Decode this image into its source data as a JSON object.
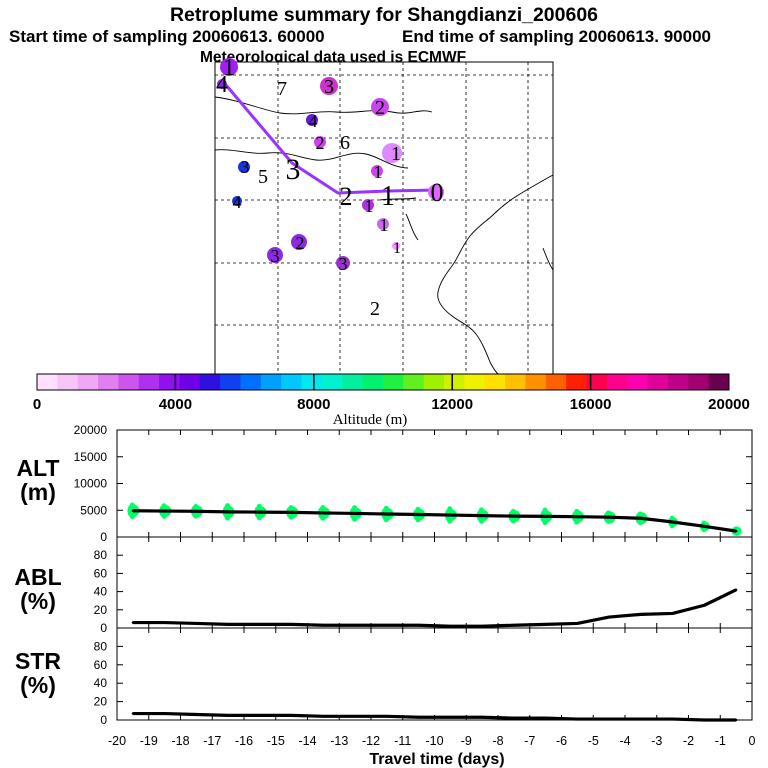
{
  "title": "Retroplume summary for Shangdianzi_200606",
  "start_time": "Start time of sampling 20060613. 60000",
  "end_time": "End time of sampling 20060613. 90000",
  "met_data": "Meteorological data used is ECMWF",
  "colors": {
    "trajectory": "#9933ff",
    "alt_markers": "#00ff66",
    "line": "#000000"
  },
  "map": {
    "markers": [
      {
        "label": "1",
        "color": "#a020f0"
      },
      {
        "label": "4",
        "color": "#8a2be2"
      },
      {
        "label": "7",
        "color": null
      },
      {
        "label": "3",
        "color": "#cc33cc"
      },
      {
        "label": "2",
        "color": "#cc44ee"
      },
      {
        "label": "4",
        "color": "#6a1bd8"
      },
      {
        "label": "2",
        "color": "#cc44ee"
      },
      {
        "label": "6",
        "color": null
      },
      {
        "label": "1",
        "color": "#dd88ff"
      },
      {
        "label": "3",
        "color": "#1a33dd"
      },
      {
        "label": "5",
        "color": null
      },
      {
        "label": "3",
        "color": null
      },
      {
        "label": "1",
        "color": "#cc44ee"
      },
      {
        "label": "2",
        "color": null
      },
      {
        "label": "1",
        "color": null
      },
      {
        "label": "0",
        "color": "#dd66ff"
      },
      {
        "label": "4",
        "color": "#1a33dd"
      },
      {
        "label": "1",
        "color": "#aa33dd"
      },
      {
        "label": "1",
        "color": "#cc66ee"
      },
      {
        "label": "2",
        "color": "#8a2be2"
      },
      {
        "label": "1",
        "color": "#ee99ff"
      },
      {
        "label": "3",
        "color": "#8a2be2"
      },
      {
        "label": "3",
        "color": "#9933cc"
      },
      {
        "label": "2",
        "color": null
      }
    ]
  },
  "colorbar": {
    "colors": [
      "#ffe0ff",
      "#f7c5f7",
      "#f0a8f5",
      "#e080f0",
      "#cc55ee",
      "#b030f0",
      "#9010f0",
      "#7000e8",
      "#3010e0",
      "#1040f0",
      "#0070ff",
      "#00a0ff",
      "#00c8ff",
      "#00e8f0",
      "#00f0d0",
      "#00f0a0",
      "#00f070",
      "#20f040",
      "#60f020",
      "#a0f000",
      "#d0f000",
      "#f0f000",
      "#ffe000",
      "#ffc000",
      "#ff9000",
      "#ff6000",
      "#ff2000",
      "#ff0050",
      "#ff0090",
      "#ff00b0",
      "#e0009a",
      "#c00088",
      "#a00070",
      "#6a0050"
    ],
    "tick_labels": [
      "0",
      "4000",
      "8000",
      "12000",
      "16000",
      "20000"
    ],
    "title": "Altitude (m)"
  },
  "chart_data": [
    {
      "type": "line",
      "name": "ALT",
      "ylabel": [
        "ALT",
        "(m)"
      ],
      "ylim": [
        0,
        20000
      ],
      "yticks": [
        "20000",
        "15000",
        "10000",
        "5000",
        "0"
      ],
      "x": [
        -19.5,
        -18.5,
        -17.5,
        -16.5,
        -15.5,
        -14.5,
        -13.5,
        -12.5,
        -11.5,
        -10.5,
        -9.5,
        -8.5,
        -7.5,
        -6.5,
        -5.5,
        -4.5,
        -3.5,
        -2.5,
        -1.5,
        -0.5
      ],
      "values": [
        4900,
        4850,
        4800,
        4700,
        4650,
        4600,
        4500,
        4400,
        4300,
        4200,
        4100,
        4000,
        3900,
        3850,
        3800,
        3700,
        3500,
        2800,
        2000,
        1100
      ],
      "scatter_spread": [
        1200,
        1100,
        1000,
        1300,
        1200,
        1000,
        1100,
        1200,
        1200,
        1100,
        1300,
        1200,
        1000,
        1300,
        1100,
        900,
        900,
        900,
        800,
        500
      ]
    },
    {
      "type": "line",
      "name": "ABL",
      "ylabel": [
        "ABL",
        "(%)"
      ],
      "ylim": [
        0,
        100
      ],
      "yticks": [
        "80",
        "60",
        "40",
        "20",
        "0"
      ],
      "x": [
        -19.5,
        -18.5,
        -17.5,
        -16.5,
        -15.5,
        -14.5,
        -13.5,
        -12.5,
        -11.5,
        -10.5,
        -9.5,
        -8.5,
        -7.5,
        -6.5,
        -5.5,
        -4.5,
        -3.5,
        -2.5,
        -1.5,
        -0.5
      ],
      "values": [
        6,
        6,
        5,
        4,
        4,
        4,
        3,
        3,
        3,
        3,
        2,
        2,
        3,
        4,
        5,
        12,
        15,
        16,
        25,
        42
      ]
    },
    {
      "type": "line",
      "name": "STR",
      "ylabel": [
        "STR",
        "(%)"
      ],
      "ylim": [
        0,
        100
      ],
      "yticks": [
        "80",
        "60",
        "40",
        "20",
        "0"
      ],
      "x": [
        -19.5,
        -18.5,
        -17.5,
        -16.5,
        -15.5,
        -14.5,
        -13.5,
        -12.5,
        -11.5,
        -10.5,
        -9.5,
        -8.5,
        -7.5,
        -6.5,
        -5.5,
        -4.5,
        -3.5,
        -2.5,
        -1.5,
        -0.5
      ],
      "values": [
        7,
        7,
        6,
        5,
        5,
        5,
        4,
        4,
        4,
        3,
        3,
        3,
        2,
        2,
        1,
        1,
        1,
        1,
        0,
        0
      ]
    }
  ],
  "x_axis": {
    "label": "Travel time (days)",
    "ticks": [
      "-20",
      "-19",
      "-18",
      "-17",
      "-16",
      "-15",
      "-14",
      "-13",
      "-12",
      "-11",
      "-10",
      "-9",
      "-8",
      "-7",
      "-6",
      "-5",
      "-4",
      "-3",
      "-2",
      "-1",
      "0"
    ]
  }
}
